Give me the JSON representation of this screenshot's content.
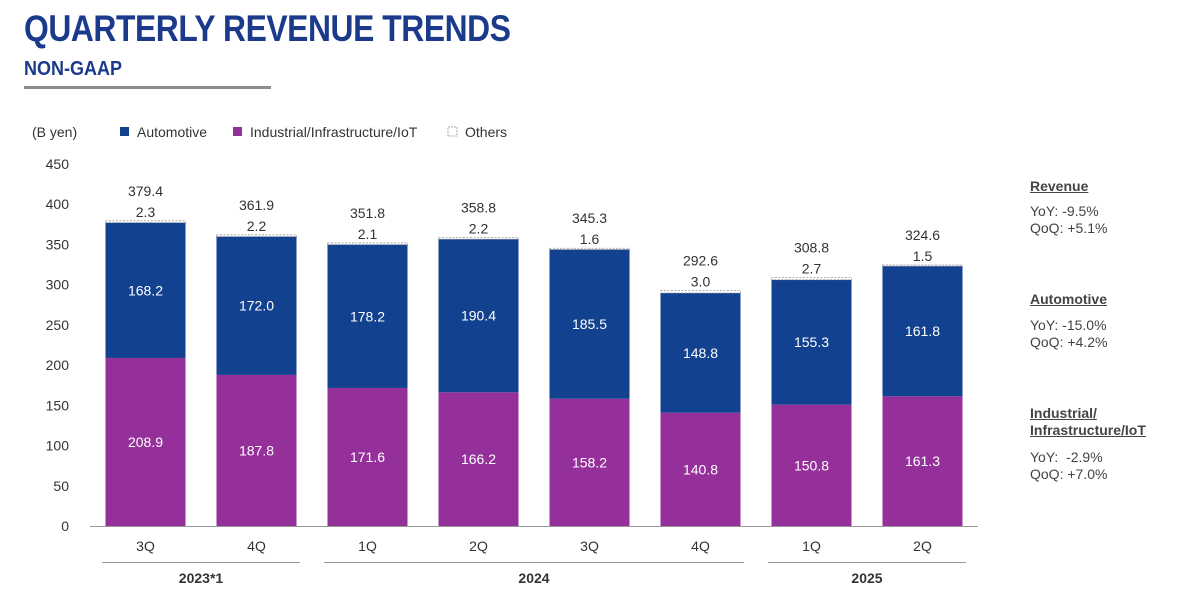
{
  "title": "QUARTERLY REVENUE TRENDS",
  "subtitle": "NON-GAAP",
  "colors": {
    "title": "#1b3a8c",
    "automotive": "#12418f",
    "industrial": "#95309b",
    "others": "#ffffff",
    "rule": "#8c8c8c"
  },
  "chart_data": {
    "type": "bar",
    "stacked": true,
    "unit_label": "(B yen)",
    "ylim": [
      0,
      450
    ],
    "yticks": [
      0,
      50,
      100,
      150,
      200,
      250,
      300,
      350,
      400,
      450
    ],
    "categories": [
      "3Q",
      "4Q",
      "1Q",
      "2Q",
      "3Q",
      "4Q",
      "1Q",
      "2Q"
    ],
    "year_groups": [
      {
        "label": "2023*1",
        "start": 0,
        "end": 1
      },
      {
        "label": "2024",
        "start": 2,
        "end": 5
      },
      {
        "label": "2025",
        "start": 6,
        "end": 7
      }
    ],
    "series": [
      {
        "name": "Industrial/Infrastructure/IoT",
        "values": [
          208.9,
          187.8,
          171.6,
          166.2,
          158.2,
          140.8,
          150.8,
          161.3
        ]
      },
      {
        "name": "Automotive",
        "values": [
          168.2,
          172.0,
          178.2,
          190.4,
          185.5,
          148.8,
          155.3,
          161.8
        ]
      },
      {
        "name": "Others",
        "values": [
          2.3,
          2.2,
          2.1,
          2.2,
          1.6,
          3.0,
          2.7,
          1.5
        ]
      }
    ],
    "totals": [
      379.4,
      361.9,
      351.8,
      358.8,
      345.3,
      292.6,
      308.8,
      324.6
    ],
    "legend": [
      {
        "name": "Automotive"
      },
      {
        "name": "Industrial/Infrastructure/IoT"
      },
      {
        "name": "Others"
      }
    ],
    "legend_position": "top-left",
    "grid": false
  },
  "side_panel": {
    "revenue": {
      "heading": "Revenue",
      "yoy": "YoY: -9.5%",
      "qoq": "QoQ: +5.1%"
    },
    "automotive": {
      "heading": "Automotive",
      "yoy": "YoY: -15.0%",
      "qoq": "QoQ: +4.2%"
    },
    "industrial": {
      "heading_line1": "Industrial/",
      "heading_line2": "Infrastructure/IoT",
      "yoy": "YoY:  -2.9%",
      "qoq": "QoQ: +7.0%"
    }
  }
}
